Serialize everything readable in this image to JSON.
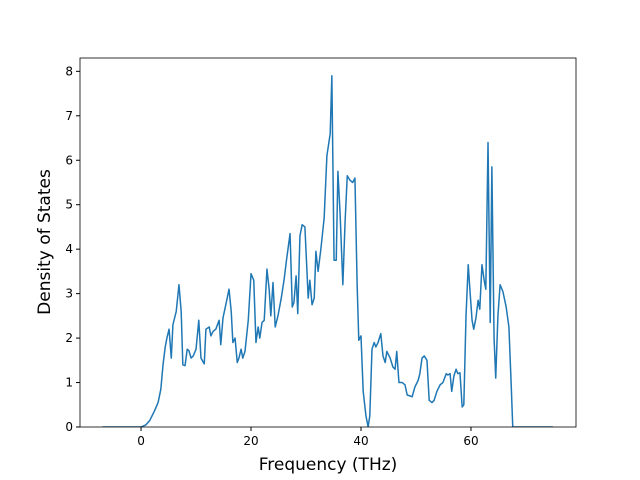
{
  "chart_data": {
    "type": "line",
    "xlabel": "Frequency (THz)",
    "ylabel": "Density of States",
    "xlim": [
      -11.1,
      79.1
    ],
    "ylim": [
      0,
      8.3
    ],
    "xticks": [
      0,
      20,
      40,
      60
    ],
    "yticks": [
      0,
      1,
      2,
      3,
      4,
      5,
      6,
      7,
      8
    ],
    "grid": false,
    "series": [
      {
        "color": "#1f77b4",
        "x": [
          -7,
          0,
          0.9,
          1.6,
          2.4,
          3.1,
          3.6,
          4,
          4.4,
          4.7,
          5.1,
          5.5,
          5.8,
          6.4,
          6.9,
          7.3,
          7.6,
          8,
          8.4,
          8.7,
          9.1,
          9.5,
          10,
          10.5,
          10.9,
          11.5,
          11.8,
          12.4,
          12.7,
          13.1,
          13.6,
          14.2,
          14.5,
          14.9,
          15.5,
          16,
          16.4,
          16.7,
          17.1,
          17.5,
          17.8,
          18.2,
          18.5,
          18.9,
          19.5,
          20,
          20.5,
          20.9,
          21.3,
          21.6,
          22,
          22.4,
          22.9,
          23.3,
          23.6,
          24,
          24.4,
          24.9,
          25.5,
          26,
          26.5,
          27.1,
          27.5,
          27.8,
          28.2,
          28.5,
          28.9,
          29.3,
          29.8,
          30.4,
          30.7,
          31.1,
          31.5,
          31.8,
          32.2,
          32.7,
          33.3,
          33.8,
          34.4,
          34.7,
          35.1,
          35.5,
          35.8,
          36.2,
          36.7,
          37.1,
          37.5,
          38,
          38.5,
          38.9,
          39.3,
          39.6,
          40,
          40.4,
          40.9,
          41.3,
          41.6,
          42,
          42.4,
          42.7,
          43.1,
          43.6,
          44,
          44.4,
          44.7,
          45.3,
          45.8,
          46.2,
          46.5,
          46.9,
          47.5,
          48,
          48.4,
          48.9,
          49.3,
          49.8,
          50.4,
          50.7,
          51.1,
          51.5,
          52,
          52.4,
          52.9,
          53.3,
          53.8,
          54.4,
          54.9,
          55.5,
          55.8,
          56.2,
          56.5,
          56.9,
          57.3,
          57.6,
          58,
          58.4,
          58.7,
          59.1,
          59.5,
          59.8,
          60.2,
          60.5,
          60.9,
          61.3,
          61.6,
          62,
          62.4,
          62.7,
          63.1,
          63.5,
          63.8,
          64.2,
          64.5,
          64.9,
          65.3,
          65.8,
          66.4,
          66.9,
          67.3,
          67.6,
          74.9
        ],
        "values": [
          0,
          0,
          0.05,
          0.15,
          0.35,
          0.55,
          0.85,
          1.4,
          1.8,
          2.0,
          2.2,
          1.55,
          2.3,
          2.6,
          3.2,
          2.6,
          1.4,
          1.38,
          1.75,
          1.72,
          1.55,
          1.6,
          1.75,
          2.4,
          1.55,
          1.42,
          2.2,
          2.25,
          2.05,
          2.15,
          2.2,
          2.4,
          1.85,
          2.45,
          2.8,
          3.1,
          2.6,
          1.9,
          2.0,
          1.45,
          1.55,
          1.75,
          1.55,
          1.7,
          2.4,
          3.45,
          3.3,
          1.9,
          2.25,
          2.0,
          2.35,
          2.4,
          3.55,
          3.1,
          2.5,
          3.25,
          2.25,
          2.5,
          2.9,
          3.3,
          3.8,
          4.35,
          2.7,
          2.8,
          3.4,
          2.55,
          4.3,
          4.55,
          4.5,
          2.9,
          3.3,
          2.75,
          2.9,
          3.95,
          3.5,
          4.0,
          4.7,
          6.1,
          6.6,
          7.9,
          3.75,
          3.75,
          5.75,
          4.8,
          3.2,
          4.6,
          5.65,
          5.55,
          5.5,
          5.6,
          3.2,
          1.95,
          2.05,
          0.8,
          0.25,
          0,
          0.25,
          1.75,
          1.9,
          1.8,
          1.9,
          2.1,
          1.6,
          1.45,
          1.7,
          1.55,
          1.35,
          1.3,
          1.7,
          1.0,
          1.0,
          0.95,
          0.72,
          0.7,
          0.68,
          0.9,
          1.05,
          1.2,
          1.55,
          1.6,
          1.5,
          0.6,
          0.55,
          0.6,
          0.8,
          0.95,
          1.0,
          1.2,
          1.17,
          1.2,
          0.8,
          1.15,
          1.3,
          1.2,
          1.22,
          0.45,
          0.5,
          2.5,
          3.65,
          3.1,
          2.4,
          2.2,
          2.45,
          2.85,
          2.65,
          3.65,
          3.3,
          3.1,
          6.4,
          2.35,
          5.85,
          2.0,
          1.1,
          2.5,
          3.2,
          3.05,
          2.7,
          2.25,
          1.0,
          0,
          0
        ]
      }
    ]
  }
}
